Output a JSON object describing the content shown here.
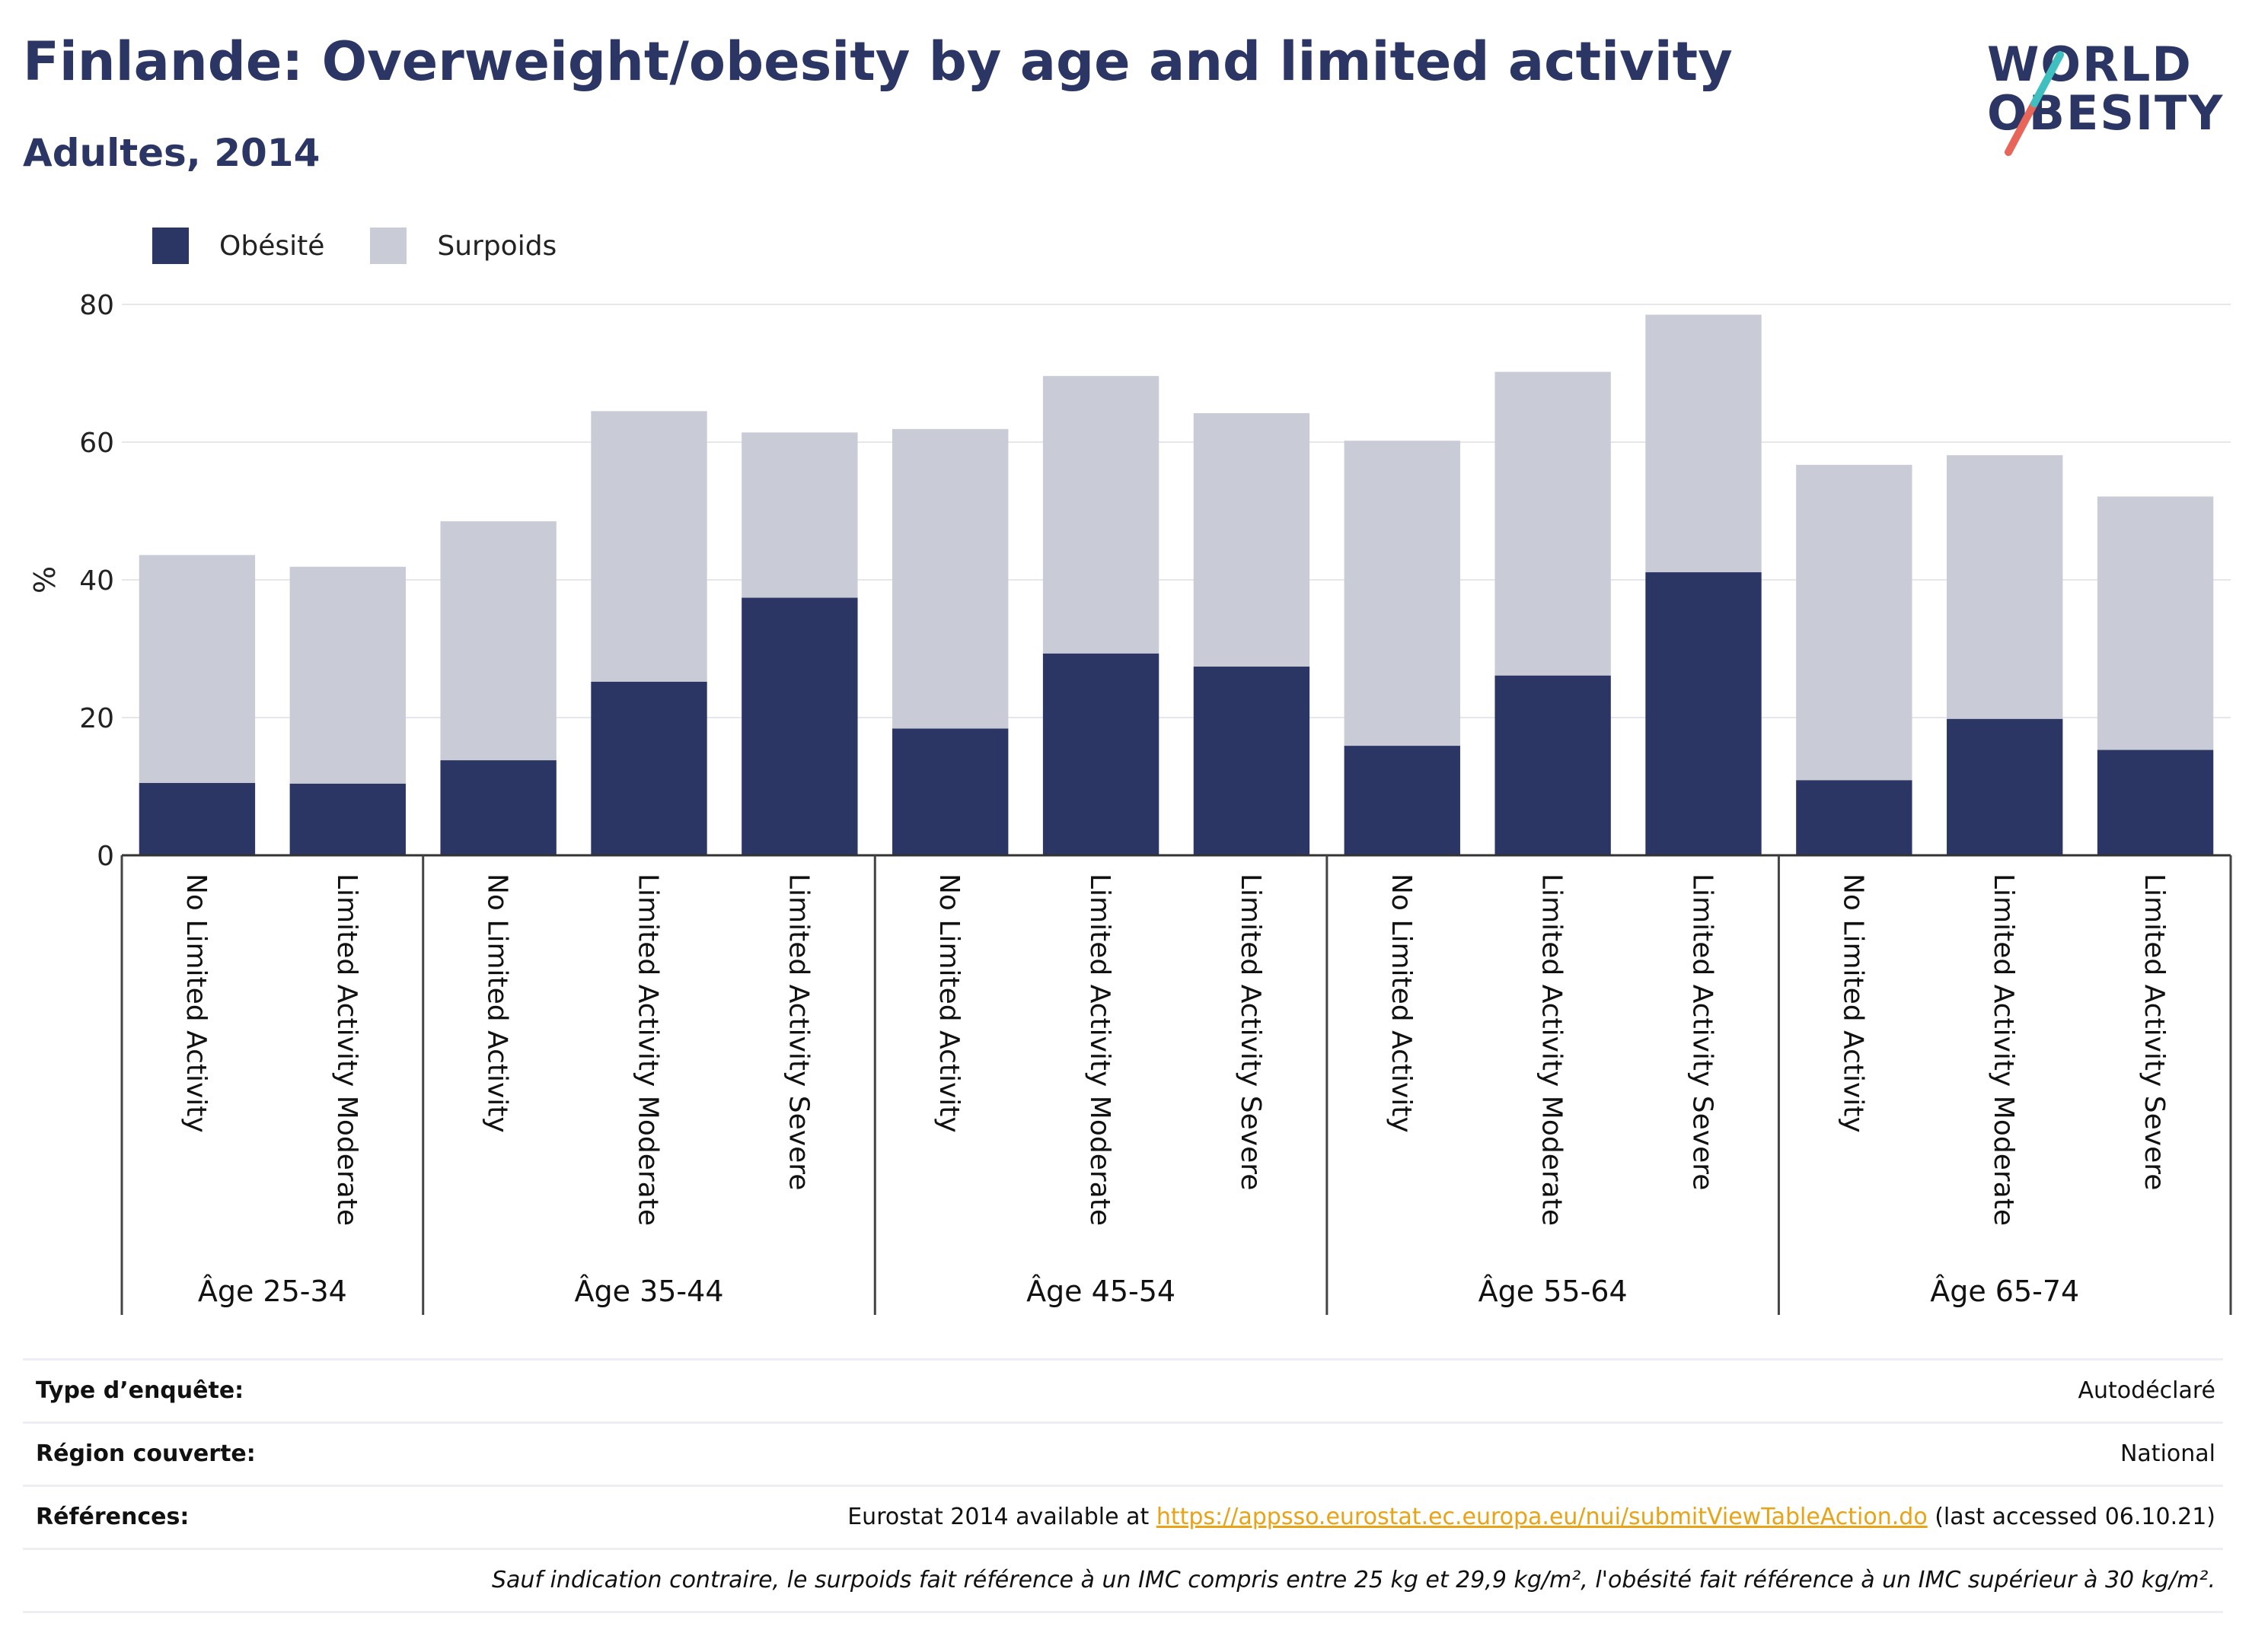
{
  "header": {
    "title": "Finlande: Overweight/obesity by age and limited activity",
    "subtitle": "Adultes, 2014"
  },
  "logo": {
    "line1": "WORLD",
    "line2": "OBESITY"
  },
  "colors": {
    "obesity": "#2b3664",
    "overweight": "#c9cbd7",
    "text": "#2b3664",
    "accent_teal": "#3fbfbf",
    "accent_red": "#e8655a",
    "link": "#e8a317"
  },
  "legend": {
    "obesity_label": "Obésité",
    "overweight_label": "Surpoids"
  },
  "chart_data": {
    "type": "bar",
    "stacked": true,
    "ylabel": "%",
    "ylim": [
      0,
      80
    ],
    "yticks": [
      0,
      20,
      40,
      60,
      80
    ],
    "grid": true,
    "legend_position": "top-left",
    "groups": [
      {
        "label": "Âge 25-34",
        "categories": [
          "No Limited Activity",
          "Limited Activity Moderate"
        ]
      },
      {
        "label": "Âge 35-44",
        "categories": [
          "No Limited Activity",
          "Limited Activity Moderate",
          "Limited Activity Severe"
        ]
      },
      {
        "label": "Âge 45-54",
        "categories": [
          "No Limited Activity",
          "Limited Activity Moderate",
          "Limited Activity Severe"
        ]
      },
      {
        "label": "Âge 55-64",
        "categories": [
          "No Limited Activity",
          "Limited Activity Moderate",
          "Limited Activity Severe"
        ]
      },
      {
        "label": "Âge 65-74",
        "categories": [
          "No Limited Activity",
          "Limited Activity Moderate",
          "Limited Activity Severe"
        ]
      }
    ],
    "series": [
      {
        "name": "Obésité",
        "values": [
          10.5,
          10.4,
          13.8,
          25.2,
          37.4,
          18.4,
          29.3,
          27.4,
          15.9,
          26.1,
          41.1,
          10.9,
          19.8,
          15.3
        ]
      },
      {
        "name": "Surpoids",
        "values": [
          33.1,
          31.5,
          34.7,
          39.3,
          24.0,
          43.5,
          40.3,
          36.8,
          44.3,
          44.1,
          37.4,
          45.8,
          38.3,
          36.8
        ]
      }
    ]
  },
  "info": {
    "survey_type_label": "Type d’enquête:",
    "survey_type_value": "Autodéclaré",
    "region_label": "Région couverte:",
    "region_value": "National",
    "references_label": "Références:",
    "references_prefix": "Eurostat 2014 available at ",
    "references_link": "https://appsso.eurostat.ec.europa.eu/nui/submitViewTableAction.do",
    "references_suffix": " (last accessed 06.10.21)",
    "note": "Sauf indication contraire, le surpoids fait référence à un IMC compris entre 25 kg et 29,9 kg/m², l'obésité fait référence à un IMC supérieur à 30 kg/m²."
  }
}
